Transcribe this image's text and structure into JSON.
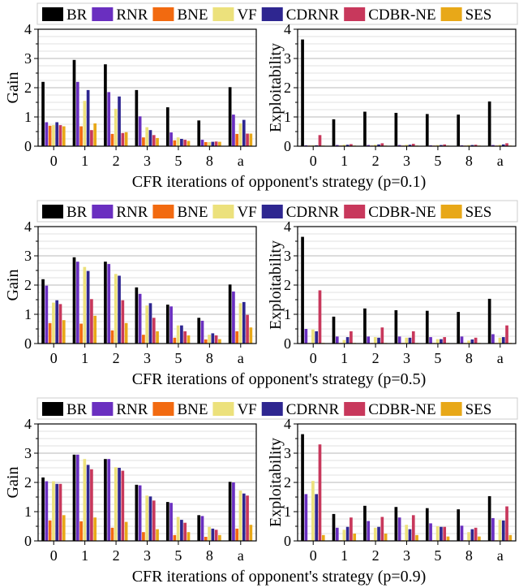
{
  "legend": [
    {
      "name": "BR",
      "color": "#000000"
    },
    {
      "name": "RNR",
      "color": "#6a2fc0"
    },
    {
      "name": "BNE",
      "color": "#f26a10"
    },
    {
      "name": "VF",
      "color": "#ece17c"
    },
    {
      "name": "CDRNR",
      "color": "#2e2690"
    },
    {
      "name": "CDBR-NE",
      "color": "#c8385c"
    },
    {
      "name": "SES",
      "color": "#e8a818"
    }
  ],
  "chart_data": [
    {
      "type": "bar",
      "xlabel": "CFR iterations of opponent's strategy (p=0.1)",
      "left": {
        "ylabel": "Gain",
        "ylim": [
          0,
          4
        ],
        "yticks": [
          0,
          1,
          2,
          3,
          4
        ],
        "categories": [
          "0",
          "1",
          "2",
          "3",
          "5",
          "8",
          "a"
        ],
        "series": [
          {
            "name": "BR",
            "values": [
              2.2,
              2.95,
              2.8,
              1.92,
              1.33,
              0.88,
              2.02
            ]
          },
          {
            "name": "RNR",
            "values": [
              0.82,
              2.2,
              1.85,
              1.02,
              0.47,
              0.22,
              1.08
            ]
          },
          {
            "name": "BNE",
            "values": [
              0.7,
              0.68,
              0.42,
              0.3,
              0.2,
              0.14,
              0.42
            ]
          },
          {
            "name": "VF",
            "values": [
              0.72,
              1.55,
              1.28,
              0.65,
              0.3,
              0.14,
              0.78
            ]
          },
          {
            "name": "CDRNR",
            "values": [
              0.82,
              1.92,
              1.7,
              0.55,
              0.25,
              0.15,
              0.9
            ]
          },
          {
            "name": "CDBR-NE",
            "values": [
              0.72,
              0.55,
              0.45,
              0.38,
              0.22,
              0.16,
              0.43
            ]
          },
          {
            "name": "SES",
            "values": [
              0.68,
              0.78,
              0.48,
              0.28,
              0.18,
              0.15,
              0.43
            ]
          }
        ]
      },
      "right": {
        "ylabel": "Exploitability",
        "ylim": [
          0,
          4
        ],
        "yticks": [
          0,
          1,
          2,
          3,
          4
        ],
        "categories": [
          "0",
          "1",
          "2",
          "3",
          "5",
          "8",
          "a"
        ],
        "series": [
          {
            "name": "BR",
            "values": [
              3.65,
              0.92,
              1.18,
              1.14,
              1.1,
              1.08,
              1.53
            ]
          },
          {
            "name": "RNR",
            "values": [
              0.03,
              0.04,
              0.04,
              0.04,
              0.03,
              0.03,
              0.04
            ]
          },
          {
            "name": "BNE",
            "values": [
              0.02,
              0.02,
              0.02,
              0.02,
              0.02,
              0.02,
              0.02
            ]
          },
          {
            "name": "VF",
            "values": [
              0.03,
              0.05,
              0.05,
              0.05,
              0.04,
              0.04,
              0.05
            ]
          },
          {
            "name": "CDRNR",
            "values": [
              0.03,
              0.05,
              0.06,
              0.05,
              0.04,
              0.04,
              0.06
            ]
          },
          {
            "name": "CDBR-NE",
            "values": [
              0.38,
              0.07,
              0.1,
              0.08,
              0.06,
              0.05,
              0.1
            ]
          },
          {
            "name": "SES",
            "values": [
              0.02,
              0.02,
              0.02,
              0.02,
              0.02,
              0.02,
              0.02
            ]
          }
        ]
      }
    },
    {
      "type": "bar",
      "xlabel": "CFR iterations of opponent's strategy (p=0.5)",
      "left": {
        "ylabel": "Gain",
        "ylim": [
          0,
          4
        ],
        "yticks": [
          0,
          1,
          2,
          3,
          4
        ],
        "categories": [
          "0",
          "1",
          "2",
          "3",
          "5",
          "8",
          "a"
        ],
        "series": [
          {
            "name": "BR",
            "values": [
              2.2,
              2.95,
              2.8,
              1.92,
              1.33,
              0.88,
              2.02
            ]
          },
          {
            "name": "RNR",
            "values": [
              1.98,
              2.8,
              2.72,
              1.7,
              1.27,
              0.78,
              1.78
            ]
          },
          {
            "name": "BNE",
            "values": [
              0.7,
              0.68,
              0.45,
              0.3,
              0.2,
              0.14,
              0.42
            ]
          },
          {
            "name": "VF",
            "values": [
              1.4,
              2.62,
              2.38,
              1.3,
              0.62,
              0.3,
              1.38
            ]
          },
          {
            "name": "CDRNR",
            "values": [
              1.48,
              2.48,
              2.32,
              1.38,
              0.62,
              0.35,
              1.42
            ]
          },
          {
            "name": "CDBR-NE",
            "values": [
              1.35,
              1.52,
              1.48,
              0.88,
              0.42,
              0.28,
              0.98
            ]
          },
          {
            "name": "SES",
            "values": [
              0.8,
              0.95,
              0.7,
              0.42,
              0.28,
              0.15,
              0.55
            ]
          }
        ]
      },
      "right": {
        "ylabel": "Exploitability",
        "ylim": [
          0,
          4
        ],
        "yticks": [
          0,
          1,
          2,
          3,
          4
        ],
        "categories": [
          "0",
          "1",
          "2",
          "3",
          "5",
          "8",
          "a"
        ],
        "series": [
          {
            "name": "BR",
            "values": [
              3.65,
              0.92,
              1.2,
              1.14,
              1.12,
              1.08,
              1.53
            ]
          },
          {
            "name": "RNR",
            "values": [
              0.5,
              0.24,
              0.24,
              0.24,
              0.22,
              0.24,
              0.32
            ]
          },
          {
            "name": "BNE",
            "values": [
              0.02,
              0.02,
              0.02,
              0.02,
              0.02,
              0.02,
              0.02
            ]
          },
          {
            "name": "VF",
            "values": [
              0.48,
              0.12,
              0.22,
              0.2,
              0.15,
              0.1,
              0.2
            ]
          },
          {
            "name": "CDRNR",
            "values": [
              0.42,
              0.22,
              0.2,
              0.2,
              0.15,
              0.14,
              0.22
            ]
          },
          {
            "name": "CDBR-NE",
            "values": [
              1.82,
              0.42,
              0.55,
              0.42,
              0.22,
              0.2,
              0.62
            ]
          },
          {
            "name": "SES",
            "values": [
              0.02,
              0.02,
              0.02,
              0.02,
              0.02,
              0.02,
              0.02
            ]
          }
        ]
      }
    },
    {
      "type": "bar",
      "xlabel": "CFR iterations of opponent's strategy (p=0.9)",
      "left": {
        "ylabel": "Gain",
        "ylim": [
          0,
          4
        ],
        "yticks": [
          0,
          1,
          2,
          3,
          4
        ],
        "categories": [
          "0",
          "1",
          "2",
          "3",
          "5",
          "8",
          "a"
        ],
        "series": [
          {
            "name": "BR",
            "values": [
              2.17,
              2.95,
              2.8,
              1.92,
              1.33,
              0.88,
              2.02
            ]
          },
          {
            "name": "RNR",
            "values": [
              2.04,
              2.95,
              2.8,
              1.9,
              1.3,
              0.85,
              2.0
            ]
          },
          {
            "name": "BNE",
            "values": [
              0.7,
              0.67,
              0.45,
              0.3,
              0.2,
              0.14,
              0.42
            ]
          },
          {
            "name": "VF",
            "values": [
              2.04,
              2.8,
              2.52,
              1.55,
              0.82,
              0.48,
              1.72
            ]
          },
          {
            "name": "CDRNR",
            "values": [
              1.95,
              2.6,
              2.5,
              1.52,
              0.72,
              0.42,
              1.62
            ]
          },
          {
            "name": "CDBR-NE",
            "values": [
              1.95,
              2.45,
              2.4,
              1.38,
              0.62,
              0.38,
              1.55
            ]
          },
          {
            "name": "SES",
            "values": [
              0.88,
              0.8,
              0.65,
              0.4,
              0.3,
              0.2,
              0.55
            ]
          }
        ]
      },
      "right": {
        "ylabel": "Exploitability",
        "ylim": [
          0,
          4
        ],
        "yticks": [
          0,
          1,
          2,
          3,
          4
        ],
        "categories": [
          "0",
          "1",
          "2",
          "3",
          "5",
          "8",
          "a"
        ],
        "series": [
          {
            "name": "BR",
            "values": [
              3.65,
              0.92,
              1.2,
              1.16,
              1.12,
              1.08,
              1.53
            ]
          },
          {
            "name": "RNR",
            "values": [
              1.6,
              0.45,
              0.68,
              0.8,
              0.6,
              0.52,
              0.78
            ]
          },
          {
            "name": "BNE",
            "values": [
              0.02,
              0.02,
              0.02,
              0.02,
              0.02,
              0.02,
              0.02
            ]
          },
          {
            "name": "VF",
            "values": [
              2.05,
              0.38,
              0.45,
              0.55,
              0.5,
              0.3,
              0.72
            ]
          },
          {
            "name": "CDRNR",
            "values": [
              1.6,
              0.48,
              0.48,
              0.4,
              0.48,
              0.4,
              0.7
            ]
          },
          {
            "name": "CDBR-NE",
            "values": [
              3.3,
              0.8,
              0.82,
              0.88,
              0.48,
              0.45,
              1.18
            ]
          },
          {
            "name": "SES",
            "values": [
              0.2,
              0.25,
              0.25,
              0.2,
              0.15,
              0.15,
              0.2
            ]
          }
        ]
      }
    }
  ]
}
